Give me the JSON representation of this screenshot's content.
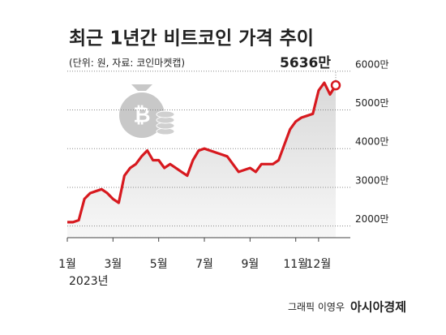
{
  "chart_data": {
    "type": "line",
    "title": "최근 1년간 비트코인 가격 추이",
    "subtitle": "(단위: 원, 자료: 코인마켓캡)",
    "year_label": "2023년",
    "credit": "그래픽 이영우",
    "brand": "아시아경제",
    "color": "#d7191f",
    "grid": true,
    "categories": [
      "1월",
      null,
      null,
      null,
      null,
      null,
      null,
      null,
      "3월",
      null,
      null,
      null,
      null,
      null,
      null,
      null,
      "5월",
      null,
      null,
      null,
      null,
      null,
      null,
      null,
      "7월",
      null,
      null,
      null,
      null,
      null,
      null,
      null,
      "9월",
      null,
      null,
      null,
      null,
      null,
      null,
      null,
      "11월",
      null,
      null,
      null,
      "12월",
      null,
      null,
      null
    ],
    "values": [
      2100,
      2100,
      2150,
      2700,
      2850,
      2900,
      2950,
      2850,
      2700,
      2600,
      3300,
      3500,
      3600,
      3800,
      3950,
      3700,
      3700,
      3500,
      3600,
      3500,
      3400,
      3300,
      3700,
      3950,
      4000,
      3950,
      3900,
      3850,
      3800,
      3600,
      3400,
      3450,
      3500,
      3400,
      3600,
      3600,
      3600,
      3700,
      4100,
      4500,
      4700,
      4800,
      4850,
      4900,
      5500,
      5700,
      5400,
      5636
    ],
    "value_labels": [
      null,
      null,
      null,
      null,
      null,
      null,
      null,
      null,
      null,
      null,
      null,
      null,
      null,
      null,
      null,
      null,
      null,
      null,
      null,
      null,
      null,
      null,
      null,
      null,
      null,
      null,
      null,
      null,
      null,
      null,
      null,
      null,
      null,
      null,
      null,
      null,
      null,
      null,
      null,
      null,
      null,
      null,
      null,
      null,
      null,
      null,
      null,
      "5636만"
    ],
    "ylim": [
      1700,
      6100
    ],
    "yticks": [
      {
        "value": 2000,
        "label": "2000만"
      },
      {
        "value": 3000,
        "label": "3000만"
      },
      {
        "value": 4000,
        "label": "4000만"
      },
      {
        "value": 5000,
        "label": "5000만"
      },
      {
        "value": 6000,
        "label": "6000만"
      }
    ]
  }
}
